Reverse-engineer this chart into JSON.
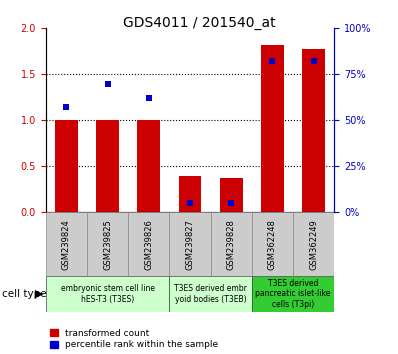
{
  "title": "GDS4011 / 201540_at",
  "samples": [
    "GSM239824",
    "GSM239825",
    "GSM239826",
    "GSM239827",
    "GSM239828",
    "GSM362248",
    "GSM362249"
  ],
  "transformed_count": [
    1.0,
    1.0,
    1.0,
    0.4,
    0.37,
    1.82,
    1.77
  ],
  "percentile_rank": [
    57,
    70,
    62,
    5,
    5,
    82,
    82
  ],
  "ylim_left": [
    0,
    2
  ],
  "ylim_right": [
    0,
    100
  ],
  "yticks_left": [
    0,
    0.5,
    1.0,
    1.5,
    2.0
  ],
  "yticks_right": [
    0,
    25,
    50,
    75,
    100
  ],
  "bar_color": "#cc0000",
  "dot_color": "#0000cc",
  "bar_width": 0.55,
  "dot_size": 25,
  "groups": [
    {
      "label": "embryonic stem cell line\nhES-T3 (T3ES)",
      "start": 0,
      "end": 2,
      "color": "#ccffcc"
    },
    {
      "label": "T3ES derived embr\nyoid bodies (T3EB)",
      "start": 3,
      "end": 4,
      "color": "#ccffcc"
    },
    {
      "label": "T3ES derived\npancreatic islet-like\ncells (T3pi)",
      "start": 5,
      "end": 6,
      "color": "#33cc33"
    }
  ],
  "cell_type_label": "cell type",
  "legend_entries": [
    "transformed count",
    "percentile rank within the sample"
  ],
  "tick_bg_color": "#cccccc",
  "title_fontsize": 10,
  "tick_fontsize": 7,
  "label_fontsize": 6,
  "group_fontsize": 5.5
}
